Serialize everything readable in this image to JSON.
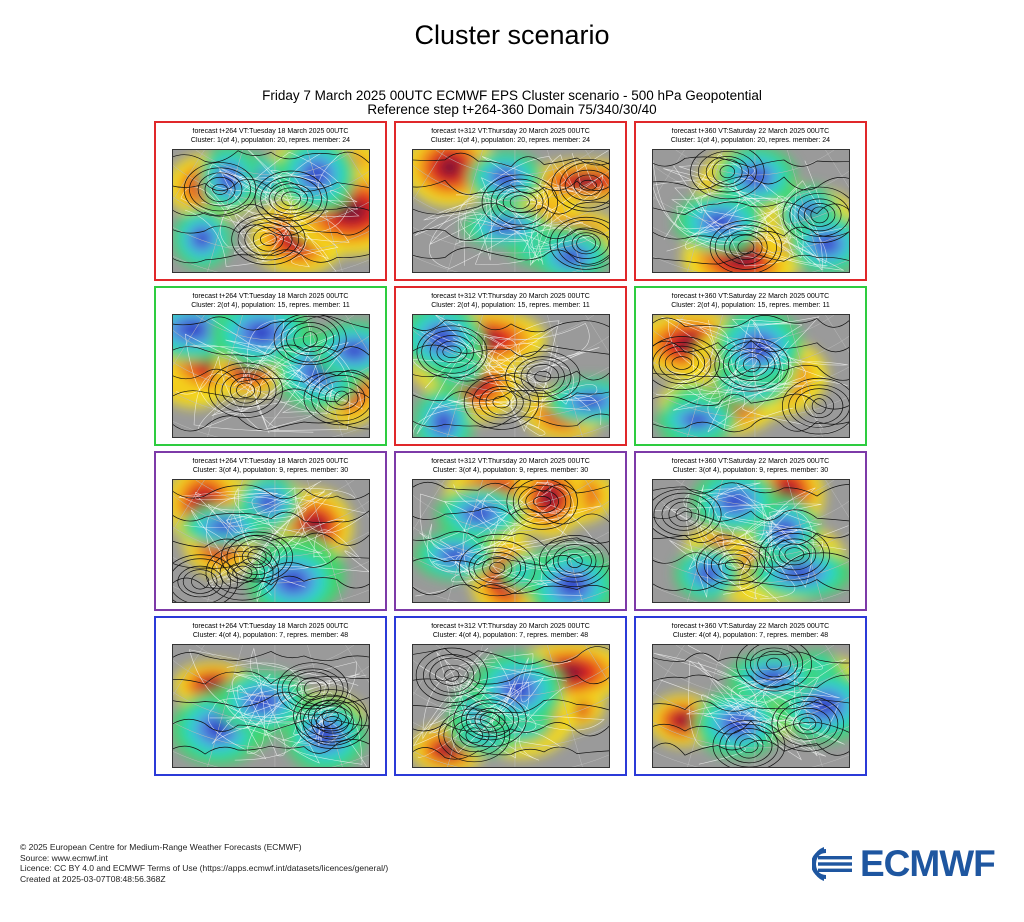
{
  "page": {
    "title": "Cluster scenario",
    "plot_title_line1": "Friday 7 March 2025 00UTC ECMWF EPS Cluster scenario - 500 hPa Geopotential",
    "plot_title_line2": "Reference step t+264-360 Domain 75/340/30/40"
  },
  "colors": {
    "frame_red": "#e0282a",
    "frame_green": "#2ecc40",
    "frame_purple": "#7d3aa8",
    "frame_blue": "#2b3ad8",
    "logo_blue": "#1e56a0"
  },
  "rows": [
    {
      "cluster": 1,
      "panels": [
        {
          "line1": "forecast t+264 VT:Tuesday 18 March 2025 00UTC",
          "line2": "Cluster: 1(of 4), population: 20, repres. member: 24",
          "frame": "red"
        },
        {
          "line1": "forecast t+312 VT:Thursday 20 March 2025 00UTC",
          "line2": "Cluster: 1(of 4), population: 20, repres. member: 24",
          "frame": "red"
        },
        {
          "line1": "forecast t+360 VT:Saturday 22 March 2025 00UTC",
          "line2": "Cluster: 1(of 4), population: 20, repres. member: 24",
          "frame": "red"
        }
      ]
    },
    {
      "cluster": 2,
      "panels": [
        {
          "line1": "forecast t+264 VT:Tuesday 18 March 2025 00UTC",
          "line2": "Cluster: 2(of 4), population: 15, repres. member: 11",
          "frame": "green"
        },
        {
          "line1": "forecast t+312 VT:Thursday 20 March 2025 00UTC",
          "line2": "Cluster: 2(of 4), population: 15, repres. member: 11",
          "frame": "red"
        },
        {
          "line1": "forecast t+360 VT:Saturday 22 March 2025 00UTC",
          "line2": "Cluster: 2(of 4), population: 15, repres. member: 11",
          "frame": "green"
        }
      ]
    },
    {
      "cluster": 3,
      "panels": [
        {
          "line1": "forecast t+264 VT:Tuesday 18 March 2025 00UTC",
          "line2": "Cluster: 3(of 4), population: 9, repres. member: 30",
          "frame": "purple"
        },
        {
          "line1": "forecast t+312 VT:Thursday 20 March 2025 00UTC",
          "line2": "Cluster: 3(of 4), population: 9, repres. member: 30",
          "frame": "purple"
        },
        {
          "line1": "forecast t+360 VT:Saturday 22 March 2025 00UTC",
          "line2": "Cluster: 3(of 4), population: 9, repres. member: 30",
          "frame": "purple"
        }
      ]
    },
    {
      "cluster": 4,
      "panels": [
        {
          "line1": "forecast t+264 VT:Tuesday 18 March 2025 00UTC",
          "line2": "Cluster: 4(of 4), population: 7, repres. member: 48",
          "frame": "blue"
        },
        {
          "line1": "forecast t+312 VT:Thursday 20 March 2025 00UTC",
          "line2": "Cluster: 4(of 4), population: 7, repres. member: 48",
          "frame": "blue"
        },
        {
          "line1": "forecast t+360 VT:Saturday 22 March 2025 00UTC",
          "line2": "Cluster: 4(of 4), population: 7, repres. member: 48",
          "frame": "blue"
        }
      ]
    }
  ],
  "footer": {
    "copyright": "© 2025 European Centre for Medium-Range Weather Forecasts (ECMWF)",
    "source": "Source: www.ecmwf.int",
    "licence": "Licence: CC BY 4.0 and ECMWF Terms of Use (https://apps.ecmwf.int/datasets/licences/general/)",
    "created": "Created at 2025-03-07T08:48:56.368Z"
  },
  "logo": {
    "text": "ECMWF"
  }
}
